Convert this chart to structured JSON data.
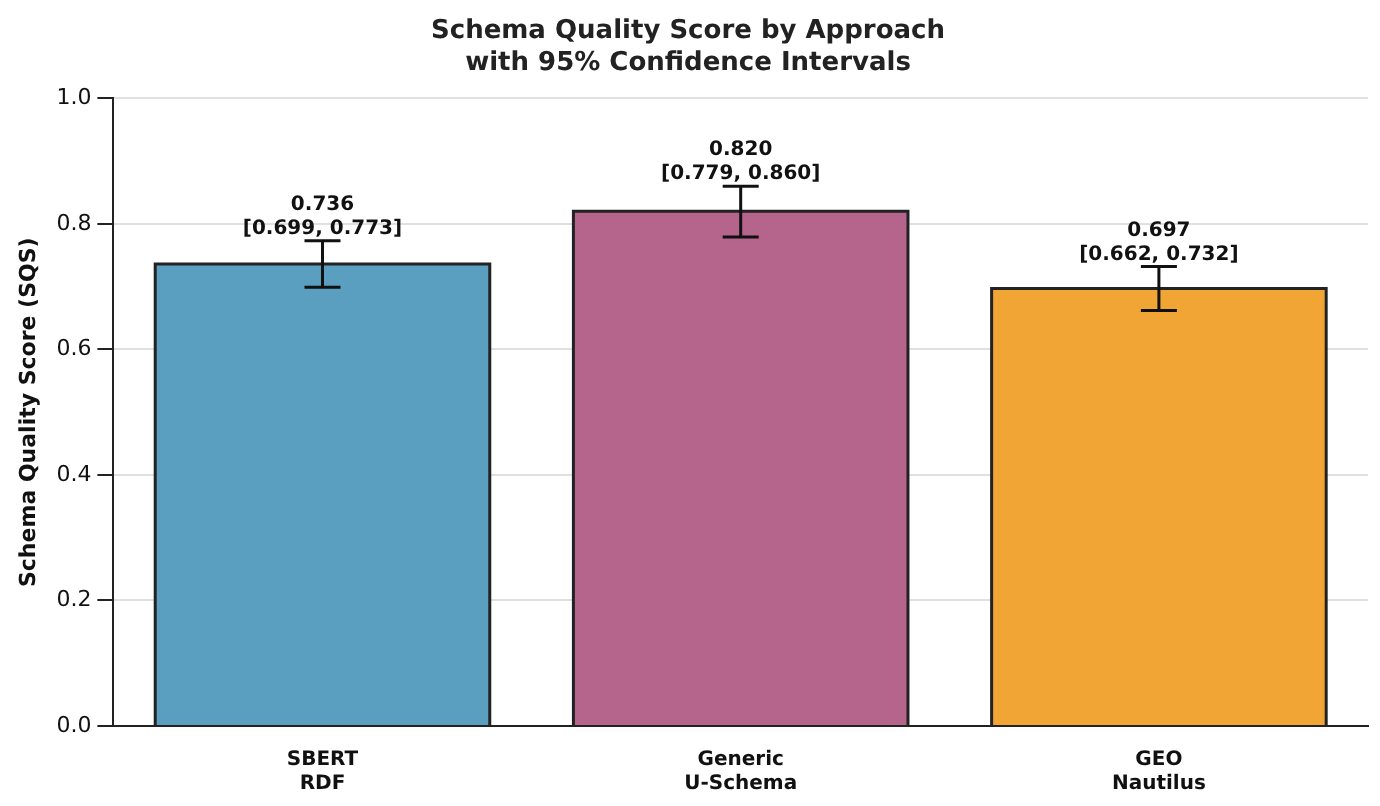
{
  "chart_data": {
    "type": "bar",
    "title": "Schema Quality Score by Approach\nwith 95% Confidence Intervals",
    "ylabel": "Schema Quality Score (SQS)",
    "categories": [
      "SBERT\nRDF",
      "Generic\nU-Schema",
      "GEO\nNautilus"
    ],
    "values": [
      0.736,
      0.82,
      0.697
    ],
    "colors": [
      "#5a9fc0",
      "#b5648c",
      "#f0a535"
    ],
    "errors": [
      [
        0.699,
        0.773
      ],
      [
        0.779,
        0.86
      ],
      [
        0.662,
        0.732
      ]
    ],
    "value_labels": [
      "0.736\n[0.699, 0.773]",
      "0.820\n[0.779, 0.860]",
      "0.697\n[0.662, 0.732]"
    ],
    "ylim": [
      0,
      1
    ],
    "yticks": [
      {
        "value": 0,
        "label": "0.0"
      },
      0.2,
      0.4,
      0.6,
      0.8,
      {
        "value": 1,
        "label": "1.0"
      }
    ],
    "grid": "y"
  }
}
